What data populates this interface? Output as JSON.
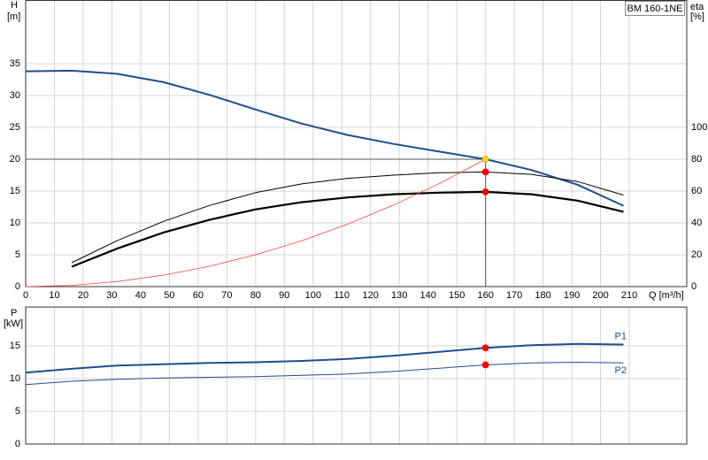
{
  "chart_data": [
    {
      "type": "line",
      "title": "BM 160-1NE",
      "y_label": "H",
      "y_unit": "[m]",
      "y2_label": "eta",
      "y2_unit": "[%]",
      "x_label": "Q [m³/h]",
      "xlim": [
        0,
        230
      ],
      "xticks": [
        0,
        10,
        20,
        30,
        40,
        50,
        60,
        70,
        80,
        90,
        100,
        110,
        120,
        130,
        140,
        150,
        160,
        170,
        180,
        190,
        200,
        210
      ],
      "ylim": [
        0,
        45
      ],
      "yticks": [
        0,
        5,
        10,
        15,
        20,
        25,
        30,
        35
      ],
      "y2lim": [
        0,
        180
      ],
      "y2ticks": [
        0,
        20,
        40,
        60,
        80,
        100
      ],
      "grid": true,
      "series": [
        {
          "color": "#1f4e8c",
          "line_width": 2,
          "x": [
            0,
            16,
            32,
            48,
            64,
            80,
            96,
            112,
            128,
            144,
            160,
            176,
            192,
            208
          ],
          "values": [
            33.8,
            33.9,
            33.4,
            32.1,
            30.1,
            27.8,
            25.6,
            23.8,
            22.4,
            21.2,
            20.0,
            18.3,
            16.0,
            12.7
          ]
        },
        {
          "color": "#000000",
          "line_width": 1,
          "axis": "y2",
          "x": [
            16,
            32,
            48,
            64,
            80,
            96,
            112,
            128,
            144,
            160,
            176,
            192,
            208
          ],
          "values": [
            15,
            29,
            41,
            51,
            59,
            64.5,
            68,
            70,
            71.5,
            72,
            70.5,
            66,
            57.5
          ]
        },
        {
          "color": "#000000",
          "line_width": 2.2,
          "axis": "y2",
          "x": [
            16,
            32,
            48,
            64,
            80,
            96,
            112,
            128,
            144,
            160,
            176,
            192,
            208
          ],
          "values": [
            12.5,
            24,
            34,
            42,
            48.5,
            53,
            56,
            58,
            59,
            59.5,
            58,
            54,
            47
          ]
        },
        {
          "color": "#ff4040",
          "line_width": 0.8,
          "x": [
            0,
            16,
            32,
            48,
            64,
            80,
            96,
            112,
            128,
            144,
            160
          ],
          "values": [
            0,
            0.2,
            0.8,
            1.8,
            3.2,
            5,
            7.2,
            9.8,
            12.8,
            16.2,
            20
          ]
        }
      ],
      "markers": [
        {
          "x": 160,
          "y": 20,
          "color": "#ffd700"
        },
        {
          "x": 160,
          "y": 72,
          "axis": "y2",
          "color": "#ff0000"
        },
        {
          "x": 160,
          "y": 59.5,
          "axis": "y2",
          "color": "#ff0000"
        }
      ]
    },
    {
      "type": "line",
      "y_label": "P",
      "y_unit": "[kW]",
      "xlim": [
        0,
        230
      ],
      "xticks": [
        0,
        10,
        20,
        30,
        40,
        50,
        60,
        70,
        80,
        90,
        100,
        110,
        120,
        130,
        140,
        150,
        160,
        170,
        180,
        190,
        200,
        210
      ],
      "ylim": [
        0,
        21
      ],
      "yticks": [
        0,
        5,
        10,
        15
      ],
      "grid": true,
      "series": [
        {
          "name": "P1",
          "color": "#1f4e8c",
          "line_width": 2,
          "x": [
            0,
            16,
            32,
            48,
            64,
            80,
            96,
            112,
            128,
            144,
            160,
            176,
            192,
            208
          ],
          "values": [
            10.9,
            11.5,
            12.0,
            12.2,
            12.4,
            12.5,
            12.7,
            13.0,
            13.5,
            14.1,
            14.7,
            15.1,
            15.3,
            15.2
          ]
        },
        {
          "name": "P2",
          "color": "#1f4e8c",
          "line_width": 1,
          "x": [
            0,
            16,
            32,
            48,
            64,
            80,
            96,
            112,
            128,
            144,
            160,
            176,
            192,
            208
          ],
          "values": [
            9.1,
            9.6,
            9.9,
            10.1,
            10.2,
            10.3,
            10.5,
            10.7,
            11.1,
            11.6,
            12.1,
            12.4,
            12.5,
            12.4
          ]
        }
      ],
      "markers": [
        {
          "x": 160,
          "y": 14.7,
          "color": "#ff0000"
        },
        {
          "x": 160,
          "y": 12.1,
          "color": "#ff0000"
        }
      ]
    }
  ]
}
